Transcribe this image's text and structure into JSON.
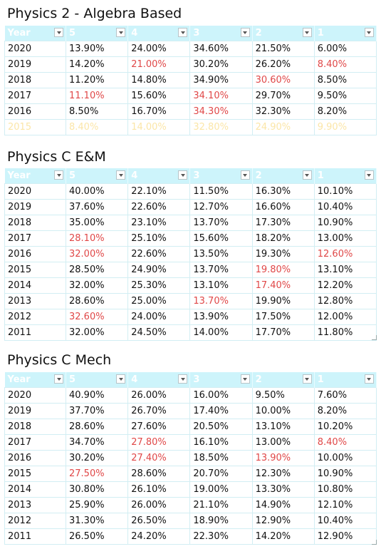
{
  "tables": [
    {
      "title": "Physics 2 - Algebra Based",
      "headers": [
        "Year",
        "5",
        "4",
        "3",
        "2",
        "1"
      ],
      "rows": [
        [
          "2020",
          "13.90%",
          "24.00%",
          "34.60%",
          "21.50%",
          "6.00%"
        ],
        [
          "2019",
          "14.20%",
          "21.00%",
          "30.20%",
          "26.20%",
          "8.40%"
        ],
        [
          "2018",
          "11.20%",
          "14.80%",
          "34.90%",
          "30.60%",
          "8.50%"
        ],
        [
          "2017",
          "11.10%",
          "15.60%",
          "34.10%",
          "29.70%",
          "9.50%"
        ],
        [
          "2016",
          "8.50%",
          "16.70%",
          "34.30%",
          "32.30%",
          "8.20%"
        ],
        [
          "2015",
          "8.40%",
          "14.00%",
          "32.80%",
          "24.90%",
          "9.90%"
        ]
      ]
    },
    {
      "title": "Physics C E&M",
      "headers": [
        "Year",
        "5",
        "4",
        "3",
        "2",
        "1"
      ],
      "rows": [
        [
          "2020",
          "40.00%",
          "22.10%",
          "11.50%",
          "16.30%",
          "10.10%"
        ],
        [
          "2019",
          "37.60%",
          "22.60%",
          "12.70%",
          "16.60%",
          "10.40%"
        ],
        [
          "2018",
          "35.00%",
          "23.10%",
          "13.70%",
          "17.30%",
          "10.90%"
        ],
        [
          "2017",
          "28.10%",
          "25.10%",
          "15.60%",
          "18.20%",
          "13.00%"
        ],
        [
          "2016",
          "32.00%",
          "22.60%",
          "13.50%",
          "19.30%",
          "12.60%"
        ],
        [
          "2015",
          "28.50%",
          "24.90%",
          "13.70%",
          "19.80%",
          "13.10%"
        ],
        [
          "2014",
          "32.00%",
          "25.30%",
          "13.10%",
          "17.40%",
          "12.20%"
        ],
        [
          "2013",
          "28.60%",
          "25.00%",
          "13.70%",
          "19.90%",
          "12.80%"
        ],
        [
          "2012",
          "32.60%",
          "24.00%",
          "13.90%",
          "17.50%",
          "12.00%"
        ],
        [
          "2011",
          "32.00%",
          "24.50%",
          "14.00%",
          "17.70%",
          "11.80%"
        ]
      ]
    },
    {
      "title": "Physics C Mech",
      "headers": [
        "Year",
        "5",
        "4",
        "3",
        "2",
        "1"
      ],
      "rows": [
        [
          "2020",
          "40.90%",
          "26.00%",
          "16.00%",
          "9.50%",
          "7.60%"
        ],
        [
          "2019",
          "37.70%",
          "26.70%",
          "17.40%",
          "10.00%",
          "8.20%"
        ],
        [
          "2018",
          "28.60%",
          "27.60%",
          "20.50%",
          "13.10%",
          "10.20%"
        ],
        [
          "2017",
          "34.70%",
          "27.80%",
          "16.10%",
          "13.00%",
          "8.40%"
        ],
        [
          "2016",
          "30.20%",
          "27.40%",
          "18.50%",
          "13.90%",
          "10.00%"
        ],
        [
          "2015",
          "27.50%",
          "28.60%",
          "20.70%",
          "12.30%",
          "10.90%"
        ],
        [
          "2014",
          "30.80%",
          "26.10%",
          "19.00%",
          "13.30%",
          "10.80%"
        ],
        [
          "2013",
          "25.90%",
          "26.00%",
          "21.10%",
          "14.90%",
          "12.10%"
        ],
        [
          "2012",
          "31.30%",
          "26.50%",
          "18.90%",
          "12.90%",
          "10.40%"
        ],
        [
          "2011",
          "26.50%",
          "24.20%",
          "22.30%",
          "14.20%",
          "12.90%"
        ]
      ]
    }
  ],
  "colors": {
    "header_bg": "#cdf4fb",
    "header_text": "#ffffff",
    "grid_line": "#d2eef3",
    "highlight_text": "#e04848",
    "faded_text": "#fbe6a8"
  },
  "icons": {
    "filter_dropdown": "chevron-down-icon",
    "resize_handle": "resize-grip-icon"
  }
}
